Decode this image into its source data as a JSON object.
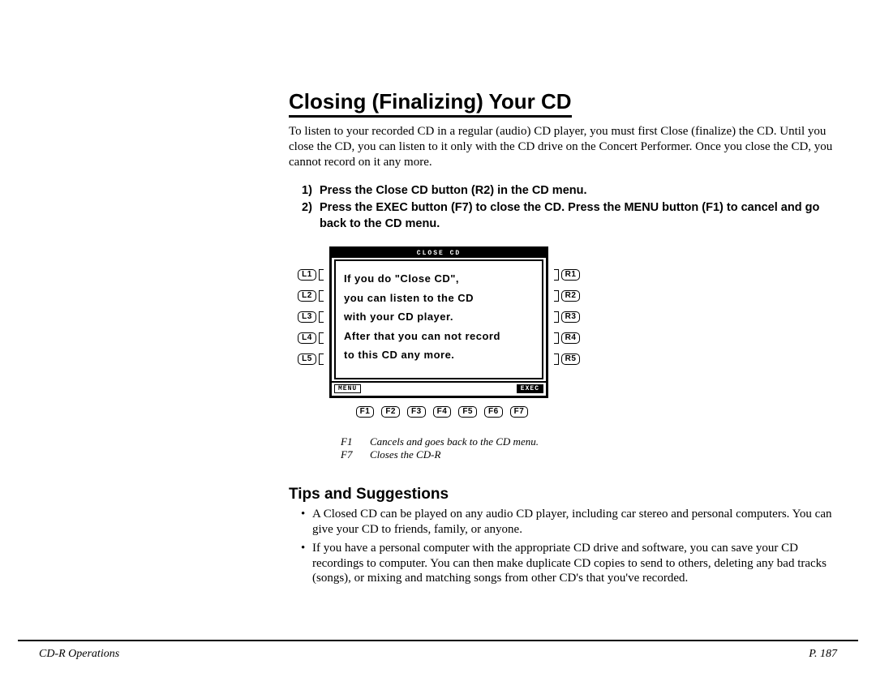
{
  "title": "Closing (Finalizing) Your CD",
  "intro": "To listen to your recorded CD in a regular (audio) CD player, you must first Close (finalize) the CD. Until you close the CD, you can listen to it only with the CD drive on the Concert Performer. Once you close the CD, you cannot record on it any more.",
  "steps": [
    {
      "n": "1)",
      "t": "Press the Close CD button (R2) in the CD menu."
    },
    {
      "n": "2)",
      "t": "Press the EXEC button (F7) to close the CD.  Press the MENU button (F1) to cancel and go back to the CD menu."
    }
  ],
  "lcd": {
    "title": "CLOSE CD",
    "lines": [
      "If you do \"Close CD\",",
      "you can listen to the CD",
      "with your CD player.",
      "After that you can not record",
      "to this CD any more."
    ],
    "menu_label": "MENU",
    "exec_label": "EXEC"
  },
  "left_keys": [
    "L1",
    "L2",
    "L3",
    "L4",
    "L5"
  ],
  "right_keys": [
    "R1",
    "R2",
    "R3",
    "R4",
    "R5"
  ],
  "f_keys": [
    "F1",
    "F2",
    "F3",
    "F4",
    "F5",
    "F6",
    "F7"
  ],
  "legend": [
    {
      "k": "F1",
      "v": "Cancels and goes back to the CD menu."
    },
    {
      "k": "F7",
      "v": "Closes the CD-R"
    }
  ],
  "tips_title": "Tips and Suggestions",
  "tips": [
    "A Closed CD can be played on any audio CD player, including car stereo and personal computers. You can give your CD to friends, family, or anyone.",
    "If you have a personal computer with the appropriate CD drive and software, you can save your CD recordings to computer. You can then make duplicate CD copies to send to others, deleting any bad tracks (songs), or mixing and matching songs from other CD's that you've recorded."
  ],
  "footer_left": "CD-R Operations",
  "footer_right": "P. 187"
}
